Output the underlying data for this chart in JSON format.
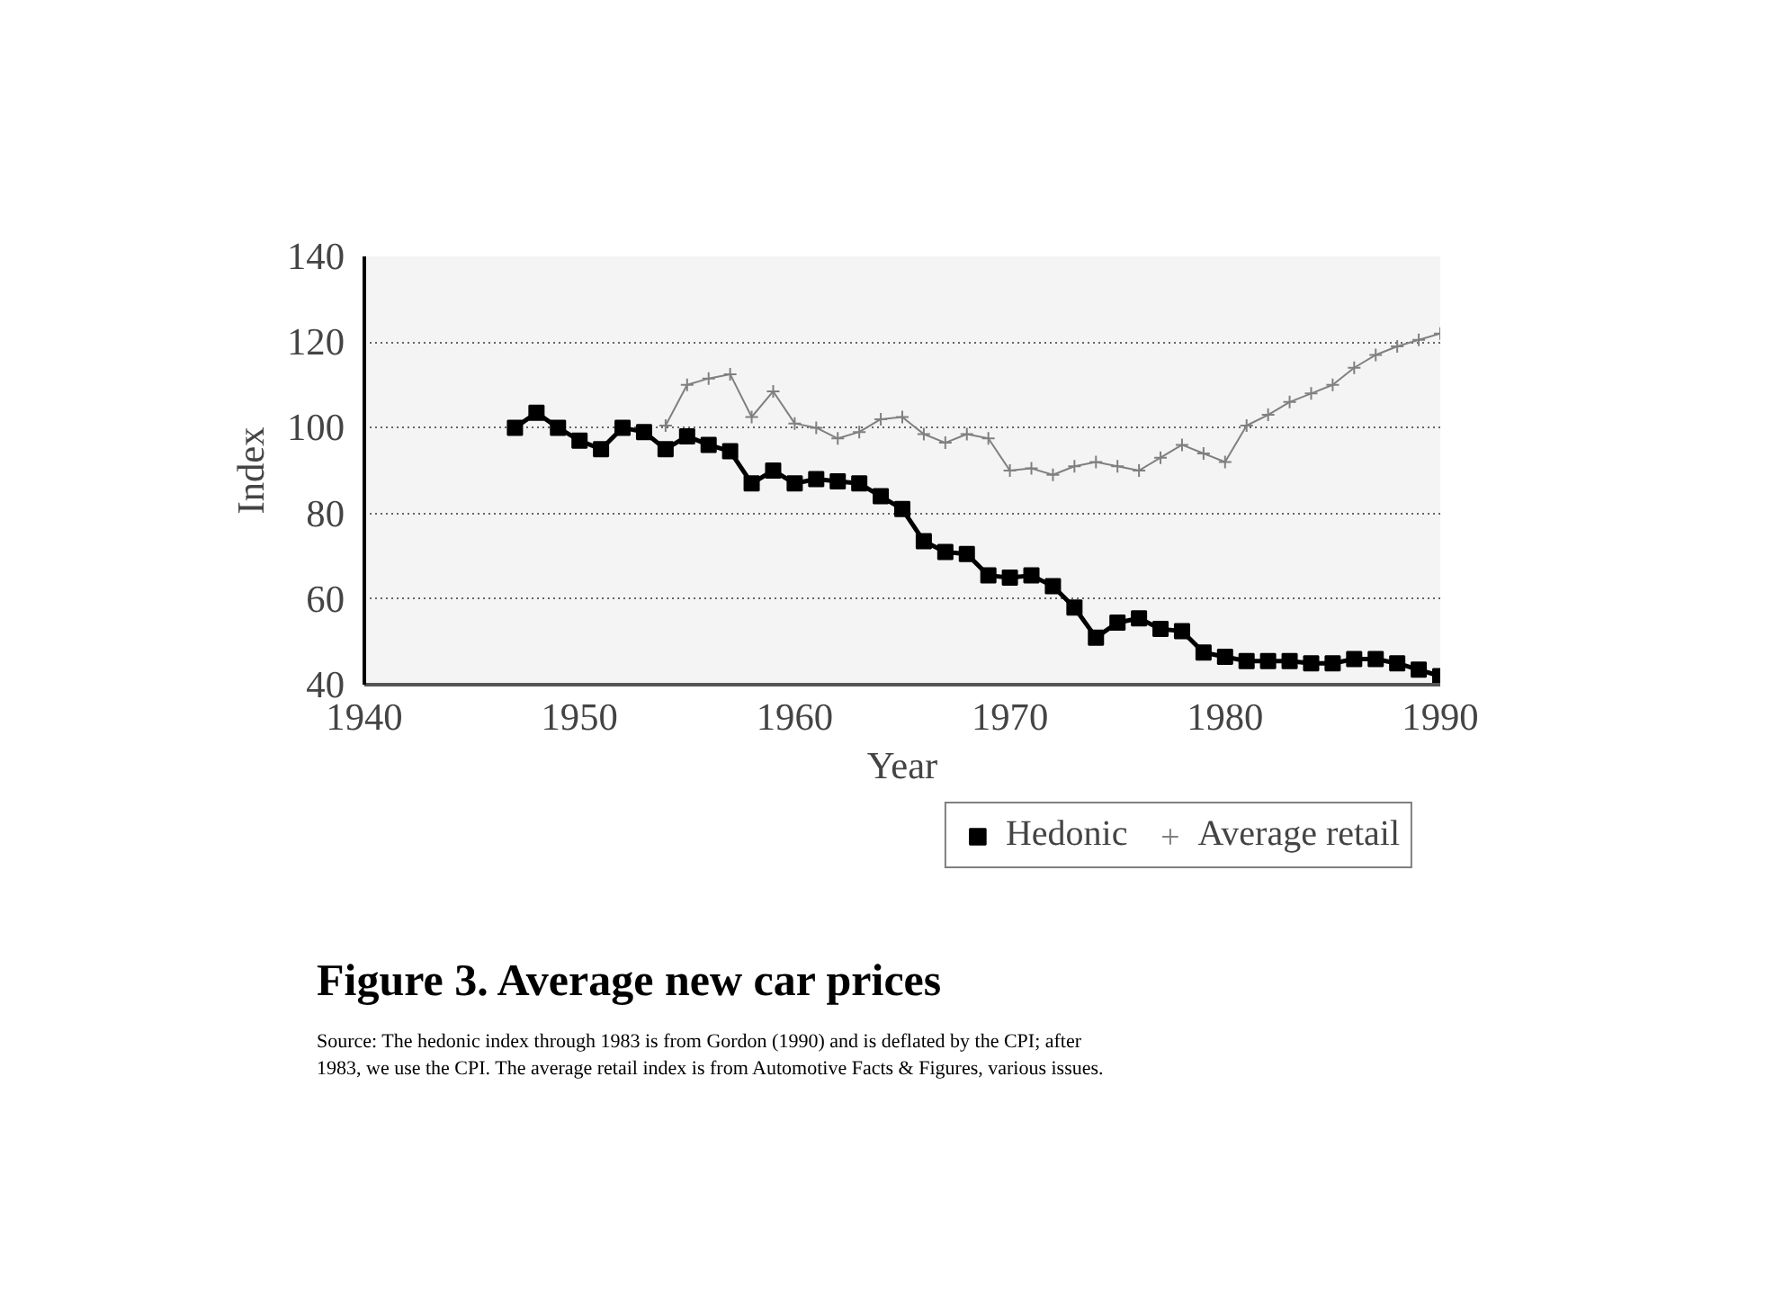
{
  "chart_data": {
    "type": "line",
    "title": "Figure 3. Average new car prices",
    "xlabel": "Year",
    "ylabel": "Index",
    "annotations": [
      "Source: The hedonic index through 1983 is from Gordon (1990) and is deflated by the CPI; after\n1983, we use the CPI.  The average retail index is from Automotive Facts & Figures, various issues."
    ],
    "xlim": [
      1940,
      1990
    ],
    "xticks": [
      1940,
      1950,
      1960,
      1970,
      1980,
      1990
    ],
    "ylim": [
      40,
      140
    ],
    "yticks": [
      40,
      60,
      80,
      100,
      120,
      140
    ],
    "grid": "y",
    "legend": "bottom right",
    "series": [
      {
        "name": "Hedonic",
        "color": "#000000",
        "marker": "square",
        "x": [
          1947,
          1948,
          1949,
          1950,
          1951,
          1952,
          1953,
          1954,
          1955,
          1956,
          1957,
          1958,
          1959,
          1960,
          1961,
          1962,
          1963,
          1964,
          1965,
          1966,
          1967,
          1968,
          1969,
          1970,
          1971,
          1972,
          1973,
          1974,
          1975,
          1976,
          1977,
          1978,
          1979,
          1980,
          1981,
          1982,
          1983,
          1984,
          1985,
          1986,
          1987,
          1988,
          1989,
          1990
        ],
        "values": [
          100,
          103.5,
          100,
          97,
          95,
          100,
          99,
          95,
          98,
          96,
          94.5,
          87,
          90,
          87,
          88,
          87.5,
          87,
          84,
          81,
          73.5,
          71,
          70.5,
          65.5,
          65,
          65.5,
          63,
          58,
          51,
          54.5,
          55.5,
          53,
          52.5,
          47.5,
          46.5,
          45.5,
          45.5,
          45.5,
          45,
          45,
          46,
          46,
          45,
          43.5,
          42
        ]
      },
      {
        "name": "Average retail",
        "color": "#808080",
        "marker": "cross",
        "x": [
          1954,
          1955,
          1956,
          1957,
          1958,
          1959,
          1960,
          1961,
          1962,
          1963,
          1964,
          1965,
          1966,
          1967,
          1968,
          1969,
          1970,
          1971,
          1972,
          1973,
          1974,
          1975,
          1976,
          1977,
          1978,
          1979,
          1980,
          1981,
          1982,
          1983,
          1984,
          1985,
          1986,
          1987,
          1988,
          1989,
          1990
        ],
        "values": [
          100.5,
          110,
          111.5,
          112.5,
          102.5,
          108.5,
          101,
          100,
          97.5,
          99,
          102,
          102.5,
          98.5,
          96.5,
          98.5,
          97.5,
          90,
          90.5,
          89,
          91,
          92,
          91,
          90,
          93,
          96,
          94,
          92,
          100.5,
          103,
          106,
          108,
          110,
          114,
          117,
          119,
          120.5,
          122
        ]
      }
    ]
  }
}
